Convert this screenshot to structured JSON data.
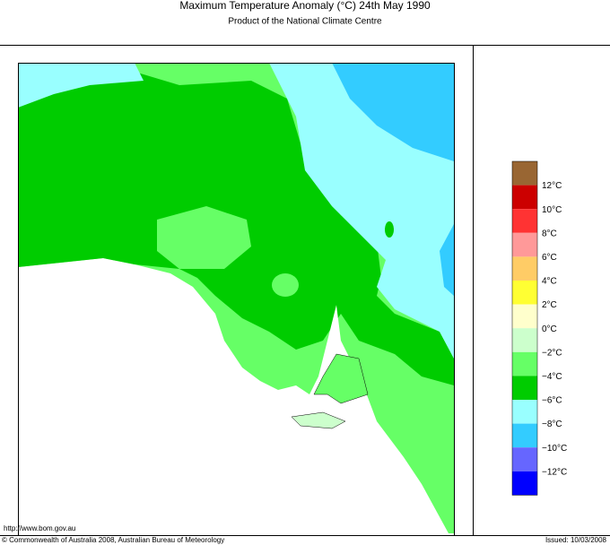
{
  "header": {
    "title": "Maximum Temperature Anomaly (°C)  24th May 1990",
    "subtitle": "Product of the National Climate Centre"
  },
  "legend": {
    "colors": [
      "#996633",
      "#cc0000",
      "#ff3333",
      "#ff9999",
      "#ffcc66",
      "#ffff33",
      "#ffffcc",
      "#ccffcc",
      "#66ff66",
      "#00cc00",
      "#99ffff",
      "#33ccff",
      "#6666ff",
      "#0000ff"
    ],
    "labels": [
      "12°C",
      "10°C",
      "8°C",
      "6°C",
      "4°C",
      "2°C",
      "0°C",
      "−2°C",
      "−4°C",
      "−6°C",
      "−8°C",
      "−10°C",
      "−12°C"
    ]
  },
  "footer": {
    "url": "http://www.bom.gov.au",
    "copyright": "© Commonwealth of Australia 2008, Australian Bureau of Meteorology",
    "issued": "Issued: 10/03/2008"
  }
}
